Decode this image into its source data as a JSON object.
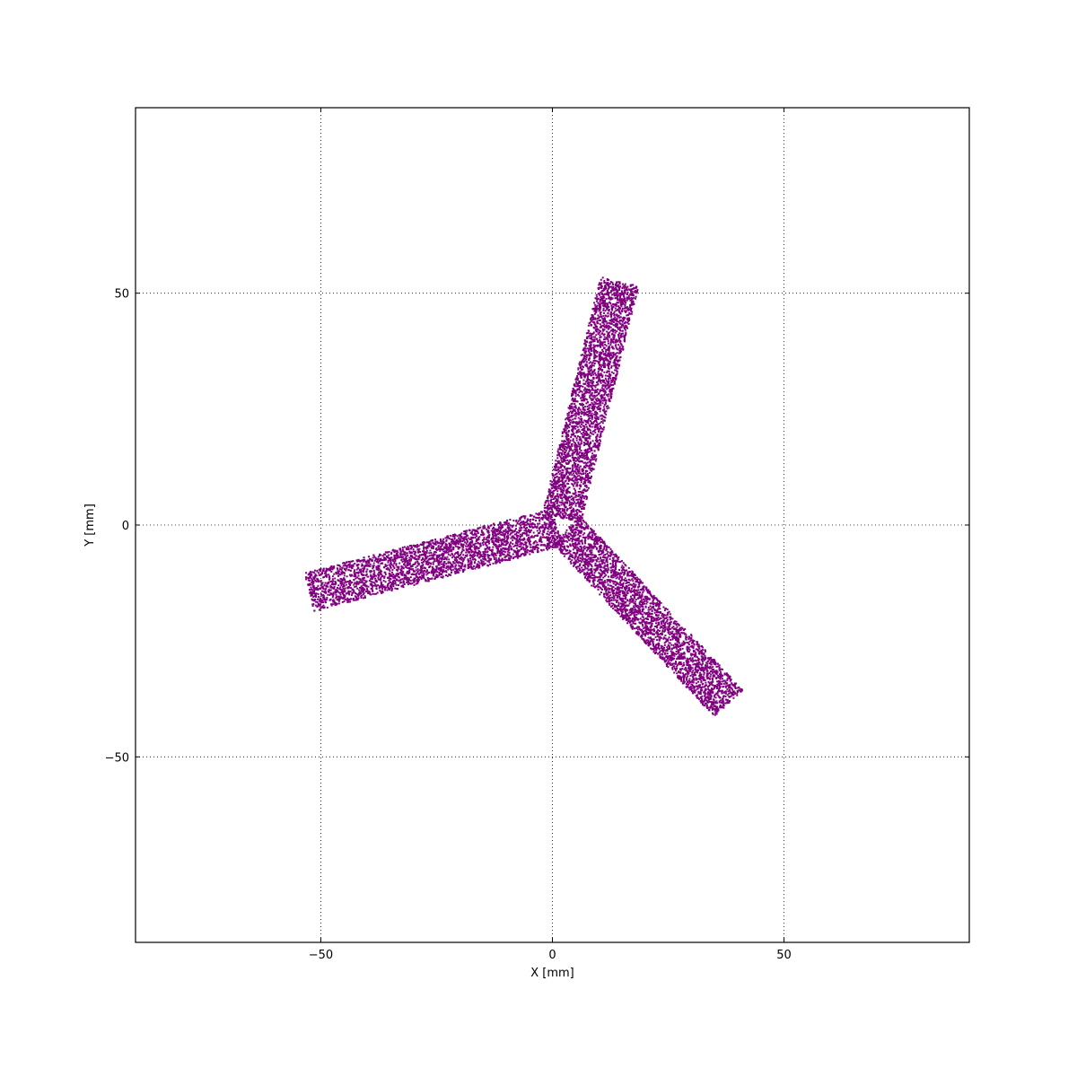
{
  "chart_data": {
    "type": "scatter",
    "title": "",
    "xlabel": "X [mm]",
    "ylabel": "Y [mm]",
    "xlim": [
      -90,
      90
    ],
    "ylim": [
      -90,
      90
    ],
    "grid": true,
    "xticks": [
      -50,
      0,
      50
    ],
    "yticks": [
      -50,
      0,
      50
    ],
    "xtick_labels": [
      "−50",
      "0",
      "50"
    ],
    "ytick_labels": [
      "−50",
      "0",
      "50"
    ],
    "marker_color": "#800080",
    "series": [
      {
        "shape": "three-arm propeller (rectangular bands sampled with points)",
        "arms": [
          {
            "from": [
              2.0,
              1.5
            ],
            "to": [
              14.5,
              52.5
            ],
            "width_mm": 8.5
          },
          {
            "from": [
              1.0,
              -0.5
            ],
            "to": [
              -52.5,
              -14.5
            ],
            "width_mm": 8.5
          },
          {
            "from": [
              3.0,
              -1.0
            ],
            "to": [
              38.0,
              -38.5
            ],
            "width_mm": 8.5
          }
        ],
        "points_per_arm": 3000
      }
    ]
  }
}
